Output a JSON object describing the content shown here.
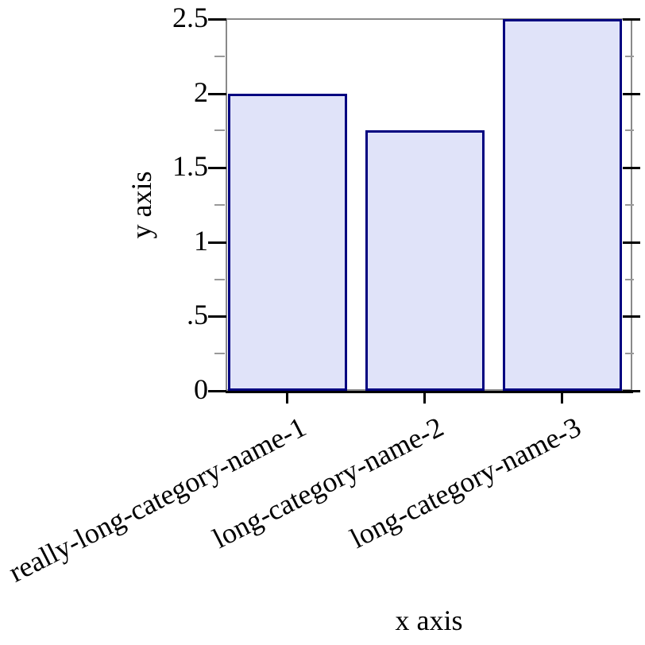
{
  "figure": {
    "background": "#ffffff"
  },
  "chart_data": {
    "type": "bar",
    "title": "",
    "xlabel": "x axis",
    "ylabel": "y axis",
    "categories": [
      "really-long-category-name-1",
      "long-category-name-2",
      "long-category-name-3"
    ],
    "values": [
      2,
      1.75,
      2.5
    ],
    "ylim": [
      0,
      2.5
    ],
    "y_major_ticks": [
      0,
      0.5,
      1,
      1.5,
      2,
      2.5
    ],
    "y_major_tick_labels": [
      "0",
      ".5",
      "1",
      "1.5",
      "2",
      "2.5"
    ],
    "y_minor_ticks": [
      0.25,
      0.75,
      1.25,
      1.75,
      2.25
    ],
    "grid": false,
    "legend": "none",
    "category_label_rotation_deg": -27,
    "colors": {
      "bar_fill": "#e0e3f9",
      "bar_border": "#000080",
      "frame": "#8a8a8a",
      "major_tick": "#000000",
      "minor_tick": "#999999",
      "text": "#000000"
    }
  }
}
